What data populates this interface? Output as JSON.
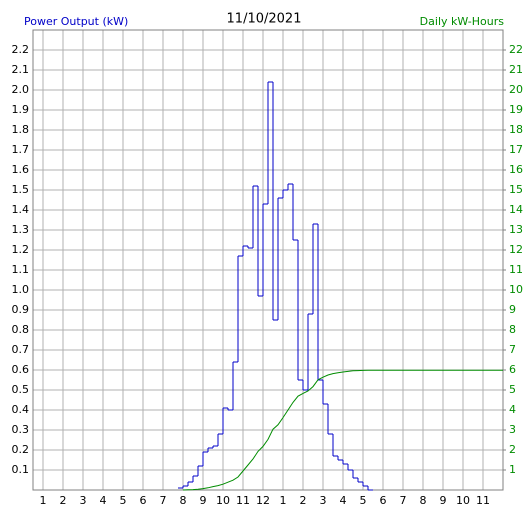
{
  "chart_data": {
    "type": "line",
    "title": "11/10/2021",
    "y_label": "Power Output (kW)",
    "y2_label": "Daily kW-Hours",
    "grid": true,
    "xlim": [
      0.5,
      24
    ],
    "xticks": [
      1,
      2,
      3,
      4,
      5,
      6,
      7,
      8,
      9,
      10,
      11,
      12,
      {
        "value": 13,
        "label": "1"
      },
      {
        "value": 14,
        "label": "2"
      },
      {
        "value": 15,
        "label": "3"
      },
      {
        "value": 16,
        "label": "4"
      },
      {
        "value": 17,
        "label": "5"
      },
      {
        "value": 18,
        "label": "6"
      },
      {
        "value": 19,
        "label": "7"
      },
      {
        "value": 20,
        "label": "8"
      },
      {
        "value": 21,
        "label": "9"
      },
      {
        "value": 22,
        "label": "10"
      },
      {
        "value": 23,
        "label": "11"
      }
    ],
    "ylim": [
      0,
      2.3
    ],
    "yticks": [
      0.1,
      0.2,
      0.3,
      0.4,
      0.5,
      0.6,
      0.7,
      0.8,
      0.9,
      {
        "value": 1,
        "label": "1.0"
      },
      1.1,
      1.2,
      1.3,
      1.4,
      1.5,
      1.6,
      1.7,
      1.8,
      1.9,
      {
        "value": 2,
        "label": "2.0"
      },
      2.1,
      2.2
    ],
    "y2lim": [
      0,
      23
    ],
    "y2ticks": [
      1,
      2,
      3,
      4,
      5,
      6,
      7,
      8,
      9,
      10,
      11,
      12,
      13,
      14,
      15,
      16,
      17,
      18,
      19,
      20,
      21,
      22
    ],
    "series": [
      {
        "name": "Power Output (kW)",
        "color": "#0000c8",
        "step": true,
        "x": [
          7.75,
          8,
          8.25,
          8.5,
          8.75,
          9,
          9.25,
          9.5,
          9.75,
          10,
          10.25,
          10.5,
          10.75,
          11,
          11.25,
          11.5,
          11.75,
          12,
          12.25,
          12.5,
          12.75,
          13,
          13.25,
          13.5,
          13.75,
          14,
          14.25,
          14.5,
          14.75,
          15,
          15.25,
          15.5,
          15.75,
          16,
          16.25,
          16.5,
          16.75,
          17,
          17.25
        ],
        "values": [
          0.01,
          0.02,
          0.04,
          0.07,
          0.12,
          0.19,
          0.21,
          0.22,
          0.28,
          0.41,
          0.4,
          0.64,
          1.17,
          1.22,
          1.21,
          1.52,
          0.97,
          1.43,
          2.04,
          0.85,
          1.46,
          1.5,
          1.53,
          1.25,
          0.55,
          0.5,
          0.88,
          1.33,
          0.55,
          0.43,
          0.28,
          0.17,
          0.15,
          0.13,
          0.1,
          0.06,
          0.04,
          0.02,
          0
        ]
      },
      {
        "name": "Daily kW-Hours",
        "color": "#008c00",
        "axis": "y2",
        "x": [
          8,
          8.25,
          8.5,
          8.75,
          9,
          9.25,
          9.5,
          9.75,
          10,
          10.25,
          10.5,
          10.75,
          11,
          11.25,
          11.5,
          11.75,
          12,
          12.25,
          12.5,
          12.75,
          13,
          13.25,
          13.5,
          13.75,
          14,
          14.25,
          14.5,
          14.75,
          15,
          15.25,
          15.5,
          15.75,
          16,
          16.25,
          16.5,
          16.75,
          17,
          17.25,
          24
        ],
        "values": [
          0,
          0.01,
          0.02,
          0.04,
          0.07,
          0.11,
          0.17,
          0.22,
          0.29,
          0.39,
          0.49,
          0.65,
          0.95,
          1.25,
          1.55,
          1.93,
          2.18,
          2.53,
          3.04,
          3.26,
          3.62,
          4,
          4.38,
          4.69,
          4.83,
          4.95,
          5.17,
          5.51,
          5.64,
          5.75,
          5.82,
          5.86,
          5.9,
          5.93,
          5.96,
          5.97,
          5.98,
          5.99,
          5.99
        ]
      }
    ]
  }
}
